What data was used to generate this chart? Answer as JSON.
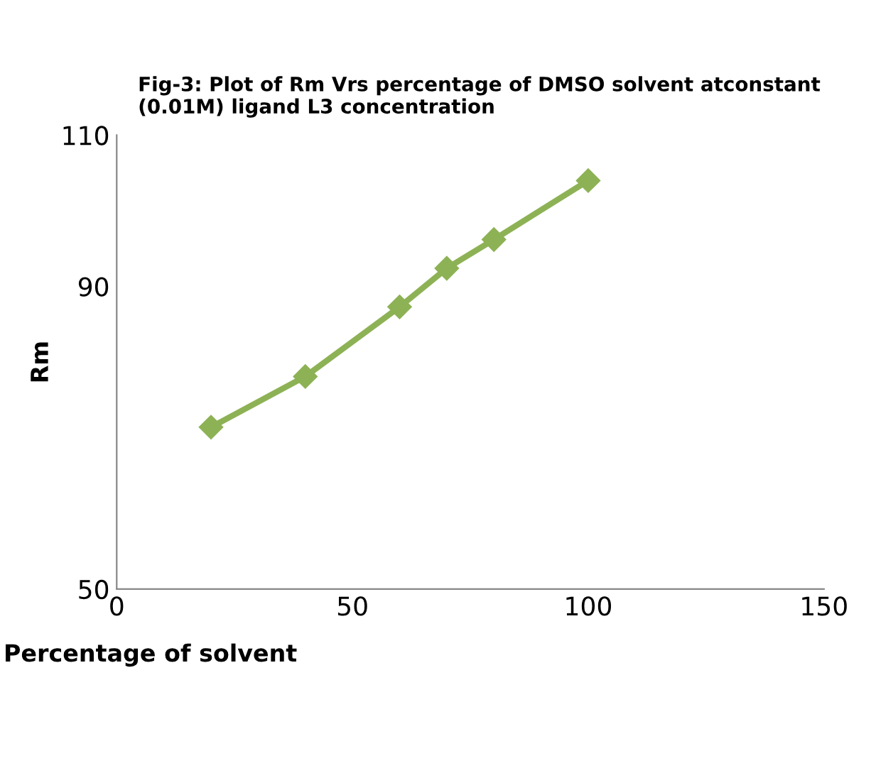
{
  "chart_data": {
    "type": "line",
    "title": "Fig-3: Plot of Rm Vrs percentage of DMSO solvent atconstant (0.01M) ligand L3 concentration",
    "xlabel": "Percentage of solvent",
    "ylabel": "Rm",
    "x": [
      20,
      40,
      60,
      70,
      80,
      100
    ],
    "series": [
      {
        "color": "#8db255",
        "values": [
          71.4,
          78.1,
          87.3,
          92.4,
          96.2,
          104
        ]
      }
    ],
    "xlim": [
      0,
      150
    ],
    "ylim": [
      50,
      110
    ],
    "xticks": [
      0,
      50,
      100,
      150
    ],
    "yticks": [
      50,
      90,
      110
    ],
    "marker": "diamond",
    "line_style": "solid",
    "grid": false,
    "legend": false
  }
}
